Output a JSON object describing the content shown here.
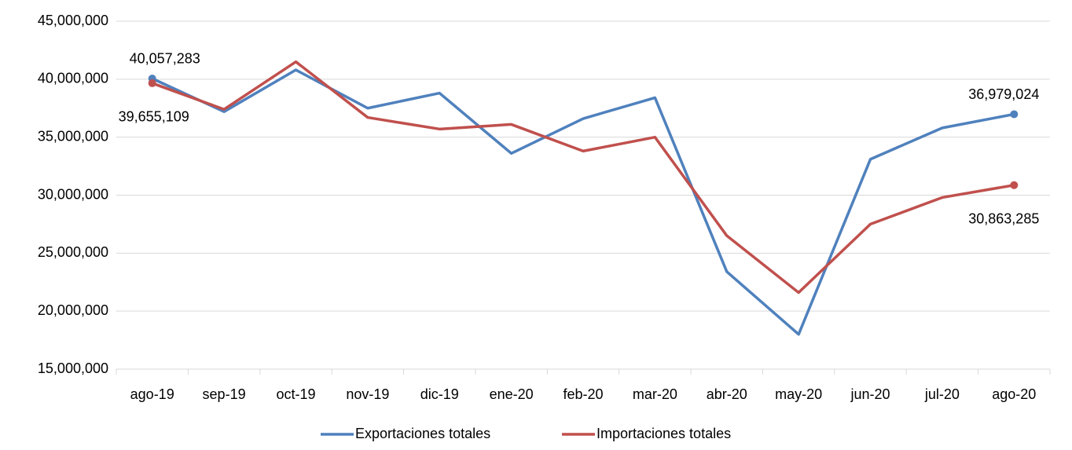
{
  "chart_data": {
    "type": "line",
    "categories": [
      "ago-19",
      "sep-19",
      "oct-19",
      "nov-19",
      "dic-19",
      "ene-20",
      "feb-20",
      "mar-20",
      "abr-20",
      "may-20",
      "jun-20",
      "jul-20",
      "ago-20"
    ],
    "series": [
      {
        "name": "Exportaciones totales",
        "color": "#4f81bd",
        "values": [
          40057283,
          37200000,
          40800000,
          37500000,
          38800000,
          33600000,
          36600000,
          38400000,
          23400000,
          18000000,
          33100000,
          35800000,
          36979024
        ],
        "value_labels": [
          "40,057,283",
          null,
          null,
          null,
          null,
          null,
          null,
          null,
          null,
          null,
          null,
          null,
          "36,979,024"
        ]
      },
      {
        "name": "Importaciones totales",
        "color": "#c0504d",
        "values": [
          39655109,
          37400000,
          41500000,
          36700000,
          35700000,
          36100000,
          33800000,
          35000000,
          26500000,
          21600000,
          27500000,
          29800000,
          30863285
        ],
        "value_labels": [
          "39,655,109",
          null,
          null,
          null,
          null,
          null,
          null,
          null,
          null,
          null,
          null,
          null,
          "30,863,285"
        ]
      }
    ],
    "ylim": [
      15000000,
      45000000
    ],
    "yticks": [
      {
        "value": 15000000,
        "label": "15,000,000"
      },
      {
        "value": 20000000,
        "label": "20,000,000"
      },
      {
        "value": 25000000,
        "label": "25,000,000"
      },
      {
        "value": 30000000,
        "label": "30,000,000"
      },
      {
        "value": 35000000,
        "label": "35,000,000"
      },
      {
        "value": 40000000,
        "label": "40,000,000"
      },
      {
        "value": 45000000,
        "label": "45,000,000"
      }
    ],
    "grid": true,
    "legend": "bottom"
  }
}
